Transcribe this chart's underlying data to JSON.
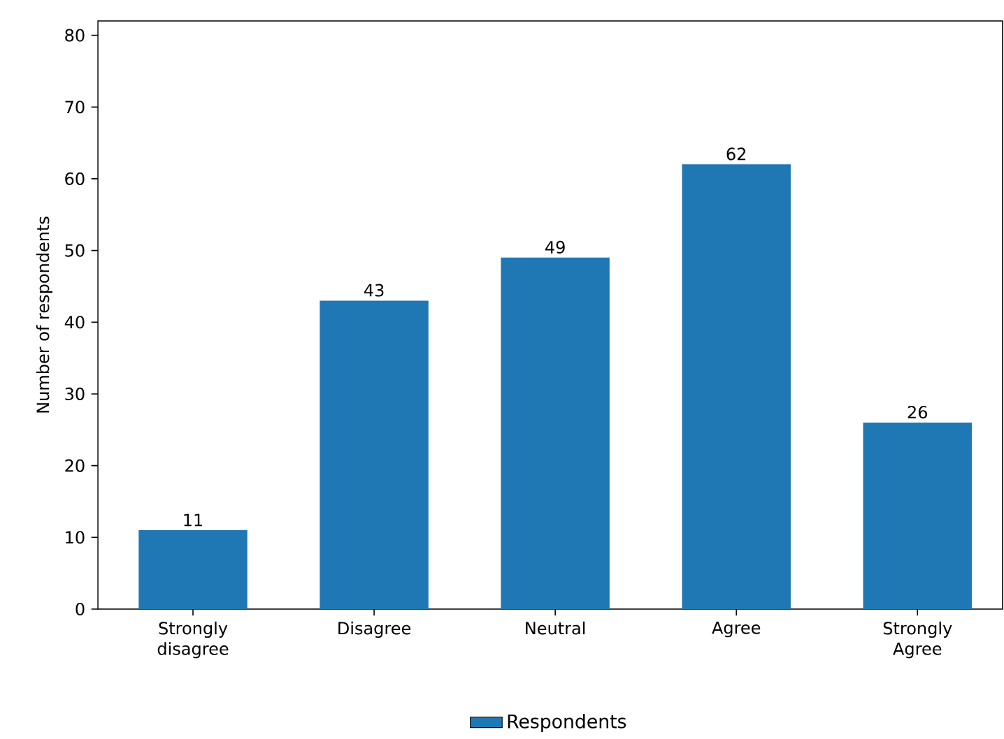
{
  "chart_data": {
    "type": "bar",
    "categories": [
      "Strongly disagree",
      "Disagree",
      "Neutral",
      "Agree",
      "Strongly Agree"
    ],
    "series": [
      {
        "name": "Respondents",
        "color": "#1f77b4",
        "values": [
          11,
          43,
          49,
          62,
          26
        ]
      }
    ],
    "ylabel": "Number of respondents",
    "ylim": [
      0,
      82
    ],
    "yticks": [
      0,
      10,
      20,
      30,
      40,
      50,
      60,
      70,
      80
    ],
    "data_labels": true,
    "grid": false,
    "legend": "bottom"
  }
}
